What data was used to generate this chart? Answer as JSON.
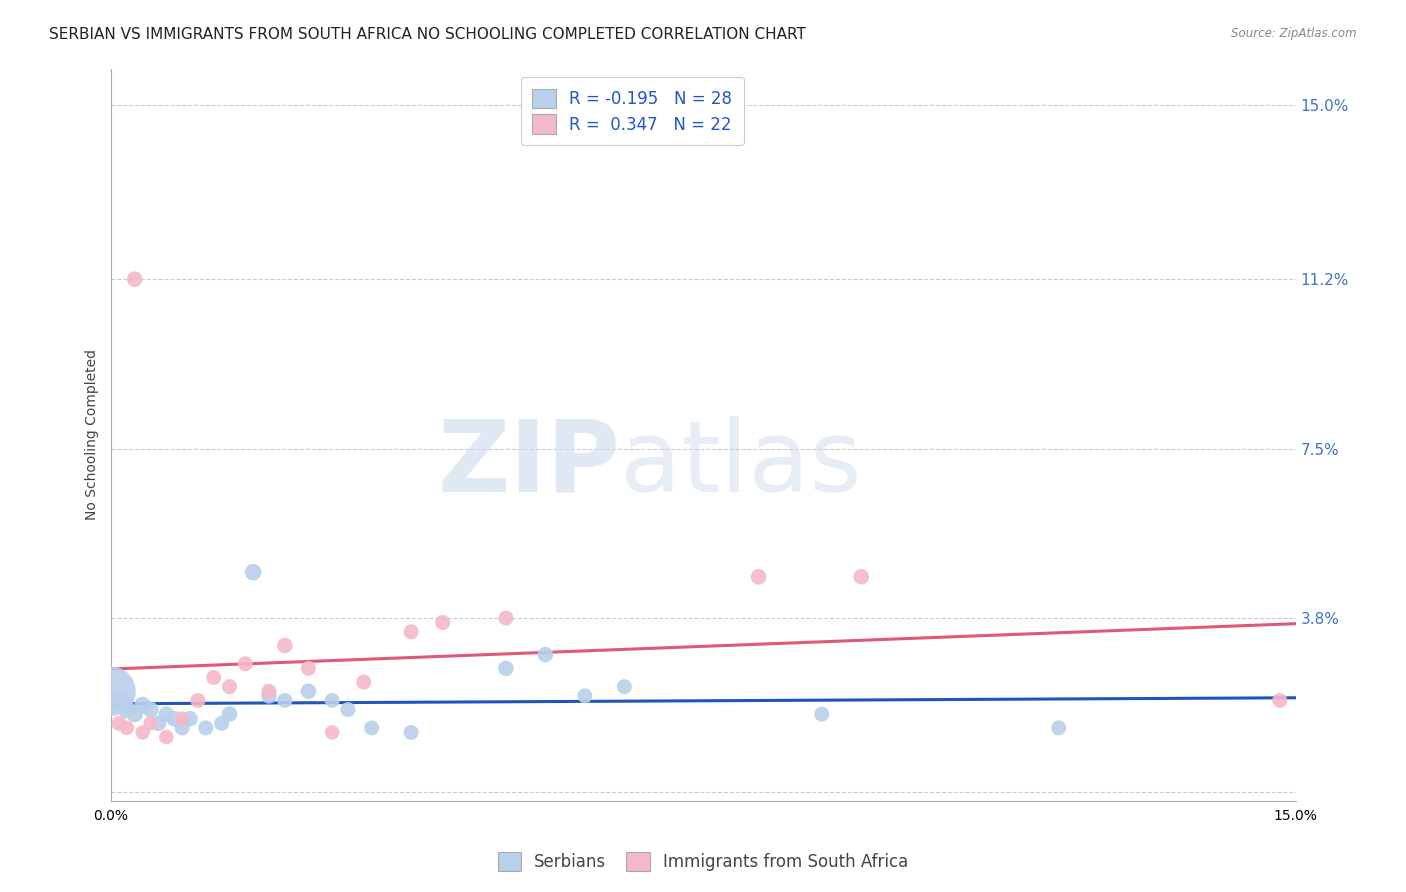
{
  "title": "SERBIAN VS IMMIGRANTS FROM SOUTH AFRICA NO SCHOOLING COMPLETED CORRELATION CHART",
  "source": "Source: ZipAtlas.com",
  "ylabel": "No Schooling Completed",
  "xlim": [
    0.0,
    0.15
  ],
  "ylim": [
    -0.002,
    0.158
  ],
  "yticks": [
    0.0,
    0.038,
    0.075,
    0.112,
    0.15
  ],
  "ytick_labels": [
    "",
    "3.8%",
    "7.5%",
    "11.2%",
    "15.0%"
  ],
  "xticks": [
    0.0,
    0.025,
    0.05,
    0.075,
    0.1,
    0.125,
    0.15
  ],
  "xtick_labels": [
    "0.0%",
    "",
    "",
    "",
    "",
    "",
    "15.0%"
  ],
  "watermark_zip": "ZIP",
  "watermark_atlas": "atlas",
  "series": [
    {
      "name": "Serbians",
      "R": -0.195,
      "N": 28,
      "color": "#b8d0ea",
      "line_color": "#2255bb",
      "x": [
        0.0,
        0.001,
        0.002,
        0.003,
        0.004,
        0.005,
        0.006,
        0.007,
        0.008,
        0.009,
        0.01,
        0.012,
        0.014,
        0.015,
        0.018,
        0.02,
        0.022,
        0.025,
        0.028,
        0.03,
        0.033,
        0.038,
        0.05,
        0.055,
        0.06,
        0.065,
        0.09,
        0.12
      ],
      "y": [
        0.022,
        0.02,
        0.018,
        0.017,
        0.019,
        0.018,
        0.015,
        0.017,
        0.016,
        0.014,
        0.016,
        0.014,
        0.015,
        0.017,
        0.048,
        0.021,
        0.02,
        0.022,
        0.02,
        0.018,
        0.014,
        0.013,
        0.027,
        0.03,
        0.021,
        0.023,
        0.017,
        0.014
      ],
      "size": [
        700,
        120,
        90,
        80,
        80,
        75,
        70,
        70,
        70,
        65,
        70,
        65,
        65,
        70,
        80,
        70,
        65,
        70,
        65,
        65,
        65,
        65,
        70,
        70,
        65,
        65,
        65,
        65
      ]
    },
    {
      "name": "Immigrants from South Africa",
      "R": 0.347,
      "N": 22,
      "color": "#f5b8c8",
      "line_color": "#e05878",
      "x": [
        0.001,
        0.002,
        0.003,
        0.004,
        0.005,
        0.007,
        0.009,
        0.011,
        0.013,
        0.015,
        0.017,
        0.02,
        0.022,
        0.025,
        0.028,
        0.032,
        0.038,
        0.042,
        0.05,
        0.082,
        0.095,
        0.148
      ],
      "y": [
        0.015,
        0.014,
        0.112,
        0.013,
        0.015,
        0.012,
        0.016,
        0.02,
        0.025,
        0.023,
        0.028,
        0.022,
        0.032,
        0.027,
        0.013,
        0.024,
        0.035,
        0.037,
        0.038,
        0.047,
        0.047,
        0.02
      ],
      "size": [
        65,
        60,
        70,
        60,
        60,
        60,
        60,
        65,
        65,
        65,
        65,
        65,
        70,
        65,
        60,
        65,
        65,
        65,
        65,
        70,
        70,
        65
      ]
    }
  ],
  "title_fontsize": 11,
  "axis_label_fontsize": 10,
  "tick_fontsize": 10,
  "legend_fontsize": 12,
  "right_tick_color": "#4472c4",
  "background_color": "#ffffff",
  "grid_color": "#cccccc",
  "grid_style": "--"
}
